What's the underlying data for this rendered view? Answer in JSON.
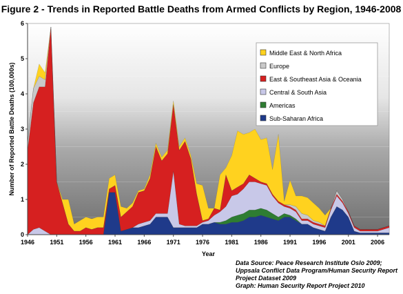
{
  "chart_data": {
    "type": "area",
    "stacked": true,
    "title": "Figure 2 - Trends in Reported Battle Deaths from Armed Conflicts by Region, 1946-2008",
    "xlabel": "Year",
    "ylabel": "Number of Reported Battle Deaths  (100,000s)",
    "xlim": [
      1946,
      2008
    ],
    "ylim": [
      0,
      6
    ],
    "xticks": [
      "1946",
      "1951",
      "1956",
      "1961",
      "1966",
      "1971",
      "1976",
      "1981",
      "1986",
      "1991",
      "1996",
      "2001",
      "2006"
    ],
    "yticks": [
      "0",
      "1",
      "2",
      "3",
      "4",
      "5",
      "6"
    ],
    "legend_position": "top-right",
    "background": "gradient-grey-bands",
    "x": [
      1946,
      1947,
      1948,
      1949,
      1950,
      1951,
      1952,
      1953,
      1954,
      1955,
      1956,
      1957,
      1958,
      1959,
      1960,
      1961,
      1962,
      1963,
      1964,
      1965,
      1966,
      1967,
      1968,
      1969,
      1970,
      1971,
      1972,
      1973,
      1974,
      1975,
      1976,
      1977,
      1978,
      1979,
      1980,
      1981,
      1982,
      1983,
      1984,
      1985,
      1986,
      1987,
      1988,
      1989,
      1990,
      1991,
      1992,
      1993,
      1994,
      1995,
      1996,
      1997,
      1998,
      1999,
      2000,
      2001,
      2002,
      2003,
      2004,
      2005,
      2006,
      2007,
      2008
    ],
    "series": [
      {
        "name": "Sub-Saharan Africa",
        "color": "#1f3a8a",
        "values": [
          0,
          0,
          0,
          0,
          0,
          0,
          0,
          0,
          0,
          0,
          0,
          0,
          0,
          0,
          1.2,
          1.2,
          0.1,
          0.15,
          0.2,
          0.2,
          0.25,
          0.3,
          0.5,
          0.5,
          0.5,
          0.2,
          0.2,
          0.2,
          0.2,
          0.2,
          0.3,
          0.3,
          0.35,
          0.3,
          0.3,
          0.35,
          0.35,
          0.4,
          0.5,
          0.5,
          0.55,
          0.5,
          0.45,
          0.4,
          0.5,
          0.5,
          0.4,
          0.3,
          0.3,
          0.2,
          0.15,
          0.1,
          0.5,
          0.8,
          0.7,
          0.5,
          0.1,
          0.05,
          0.05,
          0.05,
          0.05,
          0.05,
          0.05
        ]
      },
      {
        "name": "Americas",
        "color": "#2e7d32",
        "values": [
          0,
          0,
          0,
          0,
          0,
          0,
          0,
          0,
          0,
          0,
          0,
          0,
          0,
          0,
          0,
          0,
          0,
          0,
          0,
          0,
          0,
          0,
          0,
          0,
          0,
          0,
          0,
          0,
          0,
          0,
          0,
          0,
          0,
          0.05,
          0.1,
          0.15,
          0.2,
          0.2,
          0.2,
          0.2,
          0.2,
          0.2,
          0.15,
          0.1,
          0.1,
          0.05,
          0.05,
          0,
          0,
          0,
          0,
          0,
          0,
          0,
          0,
          0,
          0,
          0,
          0,
          0,
          0,
          0,
          0
        ]
      },
      {
        "name": "Central & South Asia",
        "color": "#c8c8e8",
        "values": [
          0,
          0.15,
          0.2,
          0.1,
          0,
          0,
          0,
          0,
          0,
          0,
          0,
          0,
          0,
          0,
          0,
          0,
          0,
          0,
          0,
          0.1,
          0.1,
          0.1,
          0.1,
          0.1,
          0.1,
          1.6,
          0.1,
          0.05,
          0.05,
          0.05,
          0.05,
          0.1,
          0.2,
          0.3,
          0.4,
          0.6,
          0.6,
          0.7,
          0.8,
          0.8,
          0.7,
          0.7,
          0.5,
          0.4,
          0.2,
          0.2,
          0.2,
          0.1,
          0.1,
          0.1,
          0.1,
          0.1,
          0.2,
          0.3,
          0.2,
          0.1,
          0.1,
          0.05,
          0.05,
          0.05,
          0.05,
          0.1,
          0.15
        ]
      },
      {
        "name": "East & Southeast Asia & Oceania",
        "color": "#d62020",
        "values": [
          2.4,
          3.6,
          4.0,
          4.1,
          5.9,
          1.5,
          0.9,
          0.3,
          0.1,
          0.1,
          0.2,
          0.15,
          0.2,
          0.2,
          0.1,
          0.2,
          0.4,
          0.5,
          0.6,
          0.9,
          0.9,
          1.2,
          1.9,
          1.5,
          1.7,
          1.9,
          2.1,
          2.4,
          1.9,
          0.9,
          0.05,
          0.05,
          0.2,
          0.05,
          0.9,
          0.15,
          0.2,
          0.15,
          0.2,
          0.1,
          0.05,
          0.05,
          0.05,
          0.05,
          0.05,
          0.05,
          0.05,
          0.05,
          0.05,
          0.05,
          0.05,
          0.05,
          0.05,
          0.05,
          0.05,
          0.05,
          0.05,
          0.05,
          0.05,
          0.05,
          0.05,
          0.05,
          0.05
        ]
      },
      {
        "name": "Europe",
        "color": "#c9c9c9",
        "values": [
          0.2,
          0.4,
          0.3,
          0.2,
          0,
          0,
          0,
          0,
          0,
          0,
          0,
          0,
          0,
          0,
          0,
          0,
          0,
          0,
          0,
          0,
          0,
          0,
          0,
          0,
          0,
          0,
          0,
          0,
          0,
          0,
          0,
          0,
          0,
          0,
          0,
          0,
          0,
          0,
          0,
          0,
          0,
          0,
          0,
          0,
          0,
          0.05,
          0.1,
          0.15,
          0.1,
          0.05,
          0.05,
          0,
          0,
          0.1,
          0.05,
          0,
          0,
          0,
          0,
          0,
          0,
          0,
          0
        ]
      },
      {
        "name": "Middle East & North Africa",
        "color": "#ffd21f",
        "values": [
          0,
          0,
          0.35,
          0.2,
          0,
          0,
          0.1,
          0.7,
          0.2,
          0.3,
          0.3,
          0.3,
          0.3,
          0.3,
          0.3,
          0.3,
          0.3,
          0.1,
          0.1,
          0.05,
          0.05,
          0.1,
          0.1,
          0.1,
          0.1,
          0.1,
          0.1,
          0.1,
          0.1,
          0.3,
          1.0,
          0.3,
          0,
          1.0,
          0.2,
          1.0,
          1.6,
          1.4,
          1.2,
          1.4,
          1.2,
          1.3,
          0.7,
          1.9,
          0.1,
          0.7,
          0.3,
          0.5,
          0.5,
          0.5,
          0.4,
          0.3,
          0,
          0,
          0,
          0,
          0,
          0,
          0,
          0,
          0,
          0,
          0
        ]
      }
    ]
  },
  "source_lines": [
    "Data Source: Peace Research Institute Oslo 2009;",
    "Uppsala Conflict Data Program/Human Security Report",
    "Project Dataset  2009",
    "Graph: Human Security Report Project 2010"
  ]
}
